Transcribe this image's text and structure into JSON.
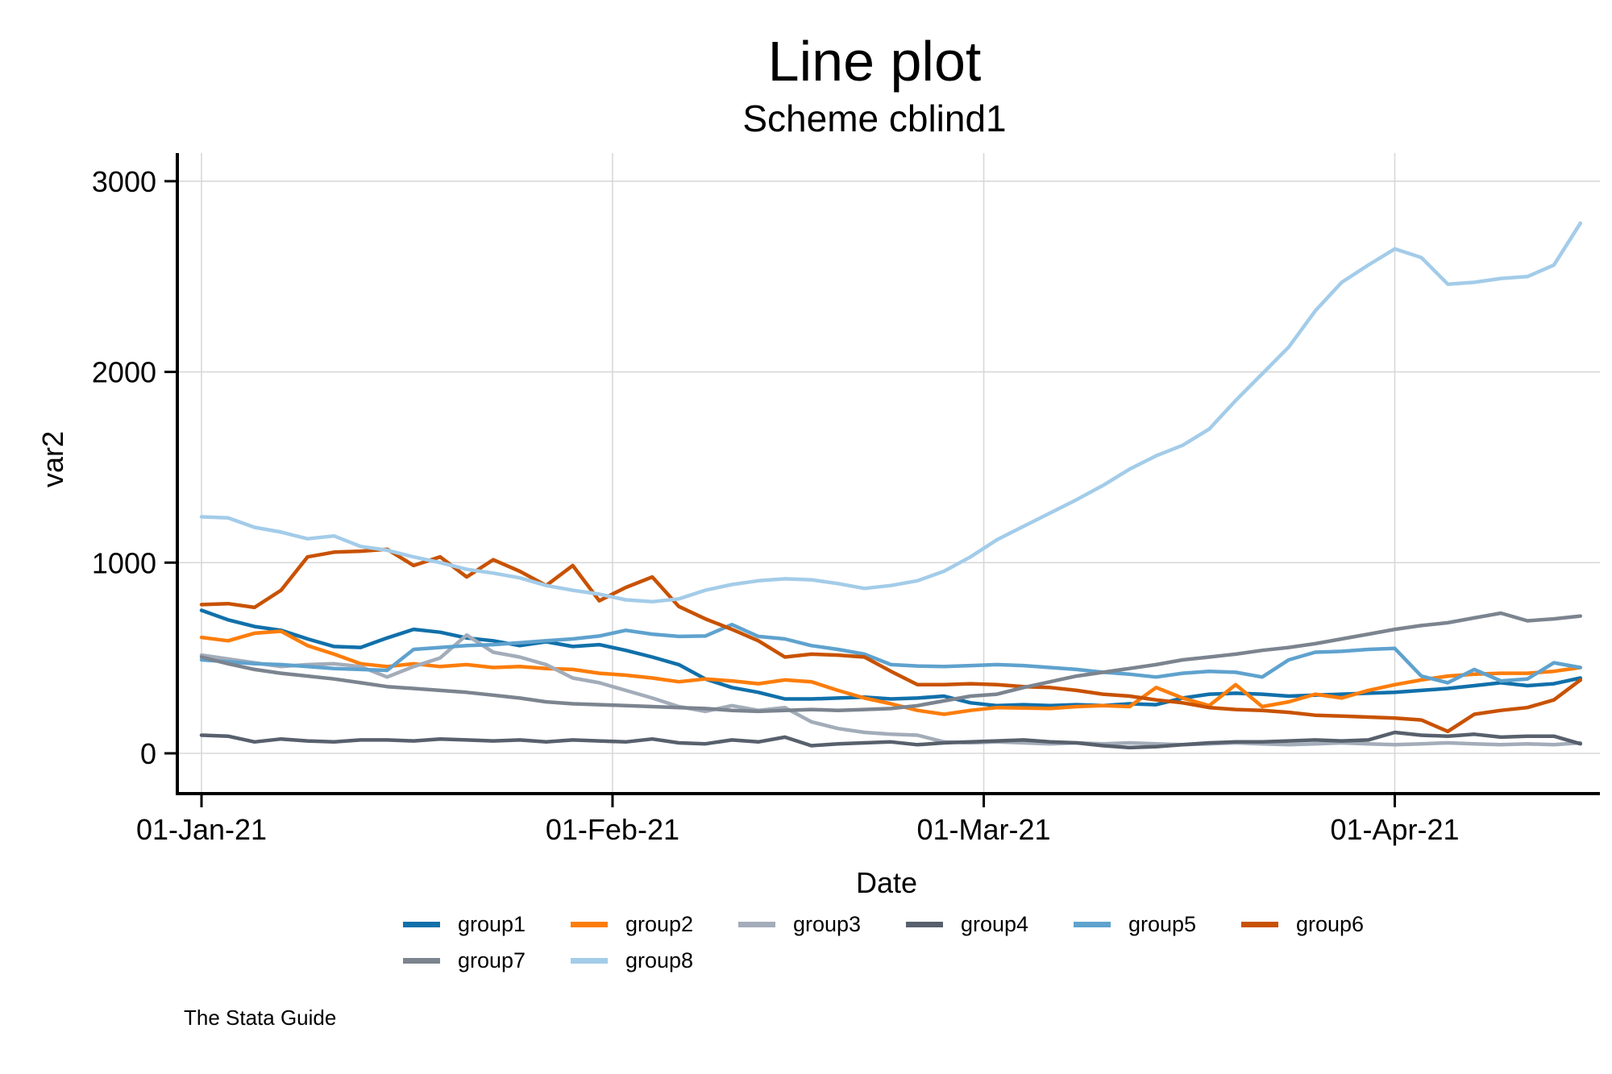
{
  "chart_data": {
    "type": "line",
    "title": "Line plot",
    "subtitle": "Scheme cblind1",
    "xlabel": "Date",
    "ylabel": "var2",
    "watermark": "The Stata Guide",
    "grid": true,
    "legend_position": "bottom",
    "background_color": "#ffffff",
    "grid_color": "#d8d8d8",
    "axis_color": "#000000",
    "ylim": [
      0,
      3000
    ],
    "y_ticks": [
      0,
      1000,
      2000,
      3000
    ],
    "x_ticks": [
      {
        "label": "01-Jan-21",
        "day": 0
      },
      {
        "label": "01-Feb-21",
        "day": 31
      },
      {
        "label": "01-Mar-21",
        "day": 59
      },
      {
        "label": "01-Apr-21",
        "day": 90
      }
    ],
    "x_unit": "days since 01-Jan-21",
    "x_range_days": [
      0,
      104
    ],
    "days": [
      0,
      2,
      4,
      6,
      8,
      10,
      12,
      14,
      16,
      18,
      20,
      22,
      24,
      26,
      28,
      30,
      32,
      34,
      36,
      38,
      40,
      42,
      44,
      46,
      48,
      50,
      52,
      54,
      56,
      58,
      60,
      62,
      64,
      66,
      68,
      70,
      72,
      74,
      76,
      78,
      80,
      82,
      84,
      86,
      88,
      90,
      92,
      94,
      96,
      98,
      100,
      102,
      104
    ],
    "series": [
      {
        "name": "group1",
        "color": "#1170aa",
        "values": [
          750,
          700,
          665,
          645,
          600,
          560,
          555,
          605,
          650,
          635,
          605,
          590,
          565,
          585,
          560,
          570,
          540,
          505,
          465,
          390,
          345,
          320,
          285,
          285,
          290,
          295,
          285,
          290,
          300,
          265,
          250,
          255,
          250,
          255,
          250,
          260,
          255,
          290,
          310,
          315,
          310,
          300,
          305,
          310,
          315,
          320,
          330,
          340,
          355,
          370,
          355,
          365,
          395
        ]
      },
      {
        "name": "group2",
        "color": "#fc7d0b",
        "values": [
          608,
          590,
          630,
          640,
          565,
          520,
          470,
          455,
          470,
          455,
          465,
          450,
          455,
          445,
          440,
          420,
          410,
          395,
          375,
          390,
          380,
          365,
          385,
          375,
          330,
          290,
          260,
          225,
          205,
          225,
          240,
          238,
          235,
          245,
          250,
          245,
          345,
          290,
          250,
          360,
          245,
          270,
          310,
          290,
          330,
          360,
          385,
          405,
          415,
          420,
          420,
          430,
          450
        ]
      },
      {
        "name": "group3",
        "color": "#a3acb9",
        "values": [
          515,
          495,
          475,
          455,
          465,
          470,
          455,
          400,
          455,
          500,
          620,
          530,
          505,
          465,
          395,
          370,
          330,
          290,
          245,
          220,
          250,
          225,
          240,
          165,
          130,
          110,
          100,
          95,
          60,
          55,
          60,
          55,
          50,
          55,
          50,
          55,
          50,
          45,
          50,
          55,
          50,
          45,
          50,
          55,
          50,
          45,
          50,
          55,
          50,
          45,
          50,
          45,
          55
        ]
      },
      {
        "name": "group4",
        "color": "#57606c",
        "values": [
          95,
          90,
          60,
          75,
          65,
          60,
          70,
          70,
          65,
          75,
          70,
          65,
          70,
          60,
          70,
          65,
          60,
          75,
          55,
          50,
          70,
          60,
          85,
          40,
          50,
          55,
          60,
          45,
          55,
          60,
          65,
          70,
          60,
          55,
          40,
          30,
          35,
          45,
          55,
          60,
          60,
          65,
          70,
          65,
          70,
          110,
          95,
          90,
          100,
          85,
          90,
          90,
          50
        ]
      },
      {
        "name": "group5",
        "color": "#5fa2ce",
        "values": [
          490,
          480,
          470,
          465,
          455,
          445,
          440,
          435,
          545,
          555,
          565,
          570,
          580,
          590,
          600,
          615,
          645,
          625,
          613,
          615,
          675,
          613,
          600,
          565,
          545,
          520,
          465,
          458,
          455,
          460,
          465,
          460,
          450,
          440,
          425,
          415,
          400,
          420,
          430,
          425,
          400,
          490,
          530,
          535,
          545,
          550,
          405,
          370,
          440,
          380,
          390,
          475,
          450
        ]
      },
      {
        "name": "group6",
        "color": "#c85200",
        "values": [
          780,
          785,
          765,
          855,
          1030,
          1055,
          1060,
          1070,
          985,
          1030,
          925,
          1015,
          955,
          880,
          985,
          800,
          870,
          925,
          770,
          705,
          650,
          590,
          505,
          520,
          515,
          505,
          430,
          360,
          360,
          365,
          360,
          350,
          345,
          330,
          310,
          300,
          280,
          265,
          240,
          230,
          225,
          215,
          200,
          195,
          190,
          185,
          175,
          115,
          205,
          225,
          240,
          280,
          385
        ]
      },
      {
        "name": "group7",
        "color": "#7b848f",
        "values": [
          505,
          470,
          440,
          420,
          405,
          390,
          370,
          350,
          340,
          330,
          320,
          305,
          290,
          270,
          260,
          255,
          250,
          245,
          240,
          235,
          225,
          220,
          225,
          230,
          225,
          230,
          235,
          250,
          275,
          300,
          310,
          345,
          375,
          405,
          425,
          445,
          465,
          490,
          505,
          520,
          540,
          555,
          575,
          600,
          625,
          650,
          670,
          685,
          710,
          735,
          695,
          705,
          720
        ]
      },
      {
        "name": "group8",
        "color": "#a3cce9",
        "values": [
          1240,
          1235,
          1185,
          1160,
          1125,
          1140,
          1085,
          1065,
          1030,
          1000,
          965,
          945,
          920,
          880,
          855,
          835,
          805,
          795,
          810,
          855,
          885,
          905,
          915,
          910,
          890,
          865,
          880,
          905,
          955,
          1030,
          1120,
          1190,
          1260,
          1330,
          1405,
          1490,
          1560,
          1615,
          1700,
          1850,
          1990,
          2130,
          2320,
          2470,
          2560,
          2645,
          2600,
          2460,
          2470,
          2490,
          2500,
          2560,
          2780
        ]
      }
    ]
  }
}
